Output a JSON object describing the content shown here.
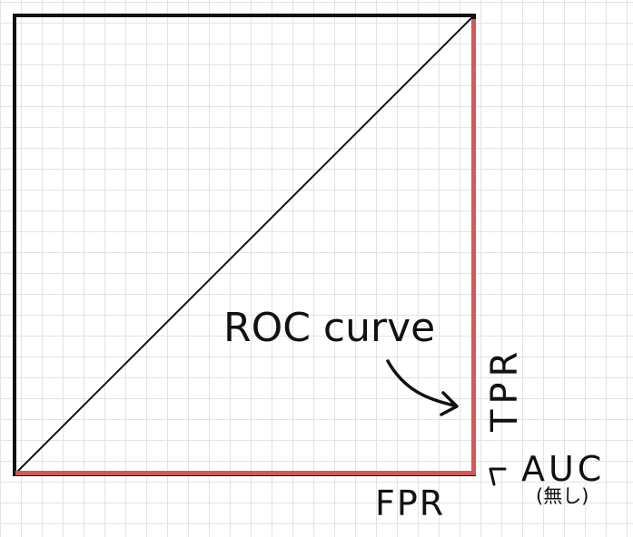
{
  "diagram": {
    "colors": {
      "frame": "#111111",
      "roc_curve": "#d05a5a",
      "diagonal": "#111111",
      "grid": "#e3e3e3"
    },
    "labels": {
      "roc_curve": "ROC curve",
      "tpr": "TPR",
      "fpr": "FPR",
      "auc": "AUC",
      "auc_note": "(無し)"
    }
  }
}
